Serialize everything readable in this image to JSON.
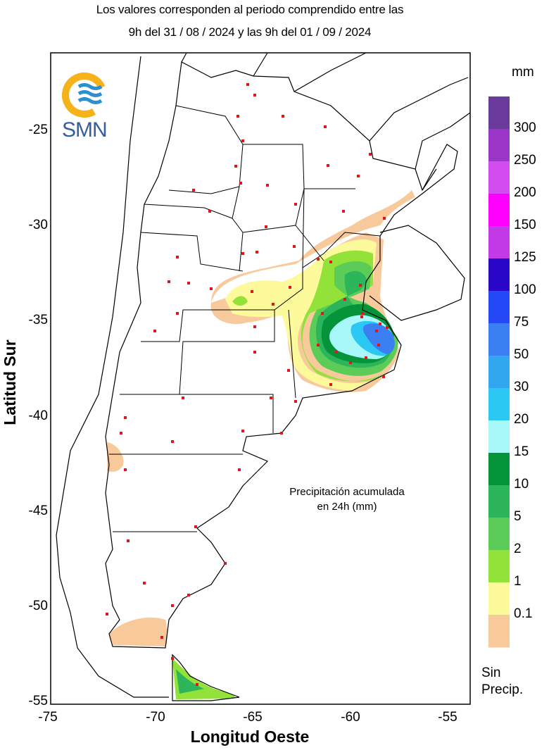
{
  "header": {
    "line1": "Los valores corresponden al periodo comprendido entre las",
    "line2": "9h del 31 / 08 / 2024  y las 9h del 01 / 09 / 2024"
  },
  "logo": {
    "text": "SMN",
    "colors": [
      "#f6b21a",
      "#2b8fd0"
    ]
  },
  "axes": {
    "xlabel": "Longitud Oeste",
    "ylabel": "Latitud Sur",
    "xticks": [
      "-75",
      "-70",
      "-65",
      "-60",
      "-55"
    ],
    "yticks": [
      "-25",
      "-30",
      "-35",
      "-40",
      "-45",
      "-50",
      "-55"
    ]
  },
  "map_note": {
    "line1": "Precipitación acumulada",
    "line2": "en 24h (mm)"
  },
  "legend": {
    "unit": "mm",
    "no_precip_line1": "Sin",
    "no_precip_line2": "Precip.",
    "colors": [
      "#6a3a9c",
      "#9b35c8",
      "#d24cf0",
      "#ff00ff",
      "#c23ae6",
      "#2a06c8",
      "#2448f5",
      "#3a80f2",
      "#33a6f0",
      "#2cc8f4",
      "#a8f8fa",
      "#05943a",
      "#2cb55a",
      "#5bcc58",
      "#93e23a",
      "#fdfa9c",
      "#f8c99b"
    ],
    "labels": [
      "300",
      "250",
      "200",
      "150",
      "125",
      "100",
      "75",
      "50",
      "30",
      "20",
      "15",
      "10",
      "5",
      "2",
      "1",
      "0.1"
    ]
  }
}
